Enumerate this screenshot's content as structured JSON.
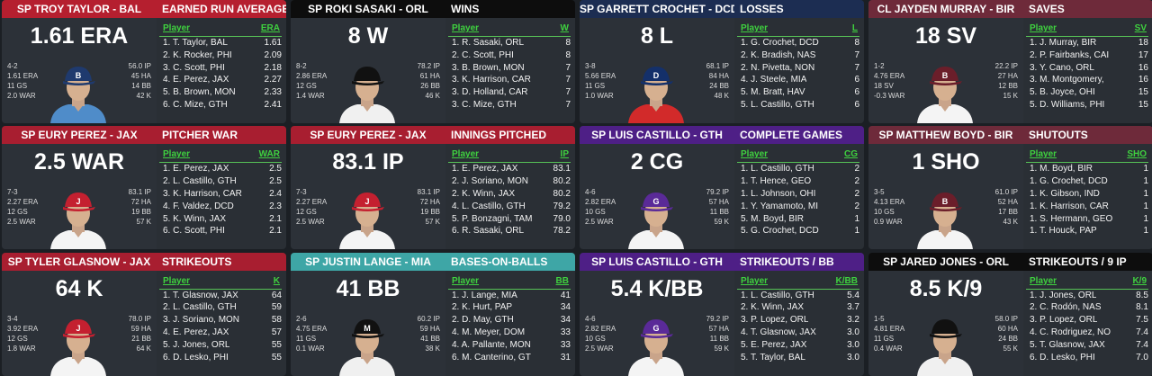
{
  "cards": [
    {
      "player": "SP TROY TAYLOR - BAL",
      "category": "EARNED RUN AVERAGE",
      "stat": "1.61 ERA",
      "header_color": "#b51f2f",
      "left": [
        "4-2",
        "1.61 ERA",
        "11 GS",
        "2.0 WAR"
      ],
      "right": [
        "56.0 IP",
        "45 HA",
        "14 BB",
        "42 K"
      ],
      "cap": "#1f3a6e",
      "cap_logo": "B",
      "jersey": "#4f8cc9",
      "col_player": "Player",
      "col_stat": "ERA",
      "rows": [
        [
          "1. T. Taylor, BAL",
          "1.61"
        ],
        [
          "2. K. Rocker, PHI",
          "2.09"
        ],
        [
          "3. C. Scott, PHI",
          "2.18"
        ],
        [
          "4. E. Perez, JAX",
          "2.27"
        ],
        [
          "5. B. Brown, MON",
          "2.33"
        ],
        [
          "6. C. Mize, GTH",
          "2.41"
        ]
      ]
    },
    {
      "player": "SP ROKI SASAKI - ORL",
      "category": "WINS",
      "stat": "8 W",
      "header_color": "#0d0d0d",
      "left": [
        "8-2",
        "2.86 ERA",
        "12 GS",
        "1.4 WAR"
      ],
      "right": [
        "78.2 IP",
        "61 HA",
        "26 BB",
        "46 K"
      ],
      "cap": "#111111",
      "cap_logo": "",
      "jersey": "#f0f0f0",
      "col_player": "Player",
      "col_stat": "W",
      "rows": [
        [
          "1. R. Sasaki, ORL",
          "8"
        ],
        [
          "2. C. Scott, PHI",
          "8"
        ],
        [
          "3. B. Brown, MON",
          "7"
        ],
        [
          "3. K. Harrison, CAR",
          "7"
        ],
        [
          "3. D. Holland, CAR",
          "7"
        ],
        [
          "3. C. Mize, GTH",
          "7"
        ]
      ]
    },
    {
      "player": "SP GARRETT CROCHET - DCD",
      "category": "LOSSES",
      "stat": "8 L",
      "header_color": "#1c2d52",
      "left": [
        "3-8",
        "5.66 ERA",
        "11 GS",
        "1.0 WAR"
      ],
      "right": [
        "68.1 IP",
        "84 HA",
        "24 BB",
        "48 K"
      ],
      "cap": "#14306a",
      "cap_logo": "D",
      "jersey": "#d22a2a",
      "col_player": "Player",
      "col_stat": "L",
      "rows": [
        [
          "1. G. Crochet, DCD",
          "8"
        ],
        [
          "2. K. Bradish, NAS",
          "7"
        ],
        [
          "2. N. Pivetta, NON",
          "7"
        ],
        [
          "4. J. Steele, MIA",
          "6"
        ],
        [
          "5. M. Bratt, HAV",
          "6"
        ],
        [
          "5. L. Castillo, GTH",
          "6"
        ]
      ]
    },
    {
      "player": "CL JAYDEN MURRAY - BIR",
      "category": "SAVES",
      "stat": "18 SV",
      "header_color": "#6e2a3a",
      "left": [
        "1-2",
        "4.76 ERA",
        "18 SV",
        "-0.3 WAR"
      ],
      "right": [
        "22.2 IP",
        "27 HA",
        "12 BB",
        "15 K"
      ],
      "cap": "#6b1e2a",
      "cap_logo": "B",
      "jersey": "#f4f4f4",
      "col_player": "Player",
      "col_stat": "SV",
      "rows": [
        [
          "1. J. Murray, BIR",
          "18"
        ],
        [
          "2. P. Fairbanks, CAI",
          "17"
        ],
        [
          "3. Y. Cano, ORL",
          "16"
        ],
        [
          "3. M. Montgomery,",
          "16"
        ],
        [
          "5. B. Joyce, OHI",
          "15"
        ],
        [
          "5. D. Williams, PHI",
          "15"
        ]
      ]
    },
    {
      "player": "SP EURY PEREZ - JAX",
      "category": "PITCHER WAR",
      "stat": "2.5 WAR",
      "header_color": "#a81e30",
      "left": [
        "7-3",
        "2.27 ERA",
        "12 GS",
        "2.5 WAR"
      ],
      "right": [
        "83.1 IP",
        "72 HA",
        "19 BB",
        "57 K"
      ],
      "cap": "#c42030",
      "cap_logo": "J",
      "jersey": "#f4f4f4",
      "col_player": "Player",
      "col_stat": "WAR",
      "rows": [
        [
          "1. E. Perez, JAX",
          "2.5"
        ],
        [
          "2. L. Castillo, GTH",
          "2.5"
        ],
        [
          "3. K. Harrison, CAR",
          "2.4"
        ],
        [
          "4. F. Valdez, DCD",
          "2.3"
        ],
        [
          "5. K. Winn, JAX",
          "2.1"
        ],
        [
          "6. C. Scott, PHI",
          "2.1"
        ]
      ]
    },
    {
      "player": "SP EURY PEREZ - JAX",
      "category": "INNINGS PITCHED",
      "stat": "83.1 IP",
      "header_color": "#a81e30",
      "left": [
        "7-3",
        "2.27 ERA",
        "12 GS",
        "2.5 WAR"
      ],
      "right": [
        "83.1 IP",
        "72 HA",
        "19 BB",
        "57 K"
      ],
      "cap": "#c42030",
      "cap_logo": "J",
      "jersey": "#f4f4f4",
      "col_player": "Player",
      "col_stat": "IP",
      "rows": [
        [
          "1. E. Perez, JAX",
          "83.1"
        ],
        [
          "2. J. Soriano, MON",
          "80.2"
        ],
        [
          "2. K. Winn, JAX",
          "80.2"
        ],
        [
          "4. L. Castillo, GTH",
          "79.2"
        ],
        [
          "5. P. Bonzagni, TAM",
          "79.0"
        ],
        [
          "6. R. Sasaki, ORL",
          "78.2"
        ]
      ]
    },
    {
      "player": "SP LUIS CASTILLO - GTH",
      "category": "COMPLETE GAMES",
      "stat": "2 CG",
      "header_color": "#4e1f86",
      "left": [
        "4-6",
        "2.82 ERA",
        "10 GS",
        "2.5 WAR"
      ],
      "right": [
        "79.2 IP",
        "57 HA",
        "11 BB",
        "59 K"
      ],
      "cap": "#5a2a98",
      "cap_logo": "G",
      "jersey": "#f4f4f4",
      "col_player": "Player",
      "col_stat": "CG",
      "rows": [
        [
          "1. L. Castillo, GTH",
          "2"
        ],
        [
          "1. T. Hence, GEO",
          "2"
        ],
        [
          "1. L. Johnson, OHI",
          "2"
        ],
        [
          "1. Y. Yamamoto, MI",
          "2"
        ],
        [
          "5. M. Boyd, BIR",
          "1"
        ],
        [
          "5. G. Crochet, DCD",
          "1"
        ]
      ]
    },
    {
      "player": "SP MATTHEW BOYD - BIR",
      "category": "SHUTOUTS",
      "stat": "1 SHO",
      "header_color": "#6e2a3a",
      "left": [
        "3-5",
        "4.13 ERA",
        "10 GS",
        "0.9 WAR"
      ],
      "right": [
        "61.0 IP",
        "52 HA",
        "17 BB",
        "43 K"
      ],
      "cap": "#6b1e2a",
      "cap_logo": "B",
      "jersey": "#f4f4f4",
      "col_player": "Player",
      "col_stat": "SHO",
      "rows": [
        [
          "1. M. Boyd, BIR",
          "1"
        ],
        [
          "1. G. Crochet, DCD",
          "1"
        ],
        [
          "1. K. Gibson, IND",
          "1"
        ],
        [
          "1. K. Harrison, CAR",
          "1"
        ],
        [
          "1. S. Hermann, GEO",
          "1"
        ],
        [
          "1. T. Houck, PAP",
          "1"
        ]
      ]
    },
    {
      "player": "SP TYLER GLASNOW - JAX",
      "category": "STRIKEOUTS",
      "stat": "64 K",
      "header_color": "#a81e30",
      "left": [
        "3-4",
        "3.92 ERA",
        "12 GS",
        "1.8 WAR"
      ],
      "right": [
        "78.0 IP",
        "59 HA",
        "21 BB",
        "64 K"
      ],
      "cap": "#c42030",
      "cap_logo": "J",
      "jersey": "#f4f4f4",
      "col_player": "Player",
      "col_stat": "K",
      "rows": [
        [
          "1. T. Glasnow, JAX",
          "64"
        ],
        [
          "2. L. Castillo, GTH",
          "59"
        ],
        [
          "3. J. Soriano, MON",
          "58"
        ],
        [
          "4. E. Perez, JAX",
          "57"
        ],
        [
          "5. J. Jones, ORL",
          "55"
        ],
        [
          "6. D. Lesko, PHI",
          "55"
        ]
      ]
    },
    {
      "player": "SP JUSTIN LANGE - MIA",
      "category": "BASES-ON-BALLS",
      "stat": "41 BB",
      "header_color": "#3ea6a6",
      "left": [
        "2-6",
        "4.75 ERA",
        "11 GS",
        "0.1 WAR"
      ],
      "right": [
        "60.2 IP",
        "59 HA",
        "41 BB",
        "38 K"
      ],
      "cap": "#111111",
      "cap_logo": "M",
      "jersey": "#f0f0f0",
      "col_player": "Player",
      "col_stat": "BB",
      "rows": [
        [
          "1. J. Lange, MIA",
          "41"
        ],
        [
          "2. K. Hurt, PAP",
          "34"
        ],
        [
          "2. D. May, GTH",
          "34"
        ],
        [
          "4. M. Meyer, DOM",
          "33"
        ],
        [
          "4. A. Pallante, MON",
          "33"
        ],
        [
          "6. M. Canterino, GT",
          "31"
        ]
      ]
    },
    {
      "player": "SP LUIS CASTILLO - GTH",
      "category": "STRIKEOUTS / BB",
      "stat": "5.4 K/BB",
      "header_color": "#4e1f86",
      "left": [
        "4-6",
        "2.82 ERA",
        "10 GS",
        "2.5 WAR"
      ],
      "right": [
        "79.2 IP",
        "57 HA",
        "11 BB",
        "59 K"
      ],
      "cap": "#5a2a98",
      "cap_logo": "G",
      "jersey": "#f4f4f4",
      "col_player": "Player",
      "col_stat": "K/BB",
      "rows": [
        [
          "1. L. Castillo, GTH",
          "5.4"
        ],
        [
          "2. K. Winn, JAX",
          "3.7"
        ],
        [
          "3. P. Lopez, ORL",
          "3.2"
        ],
        [
          "4. T. Glasnow, JAX",
          "3.0"
        ],
        [
          "5. E. Perez, JAX",
          "3.0"
        ],
        [
          "5. T. Taylor, BAL",
          "3.0"
        ]
      ]
    },
    {
      "player": "SP JARED JONES - ORL",
      "category": "STRIKEOUTS / 9 IP",
      "stat": "8.5 K/9",
      "header_color": "#0d0d0d",
      "left": [
        "1-5",
        "4.81 ERA",
        "11 GS",
        "0.4 WAR"
      ],
      "right": [
        "58.0 IP",
        "60 HA",
        "24 BB",
        "55 K"
      ],
      "cap": "#111111",
      "cap_logo": "",
      "jersey": "#f0f0f0",
      "col_player": "Player",
      "col_stat": "K/9",
      "rows": [
        [
          "1. J. Jones, ORL",
          "8.5"
        ],
        [
          "2. C. Rodón, NAS",
          "8.1"
        ],
        [
          "3. P. Lopez, ORL",
          "7.5"
        ],
        [
          "4. C. Rodriguez, NO",
          "7.4"
        ],
        [
          "5. T. Glasnow, JAX",
          "7.4"
        ],
        [
          "6. D. Lesko, PHI",
          "7.0"
        ]
      ]
    }
  ]
}
